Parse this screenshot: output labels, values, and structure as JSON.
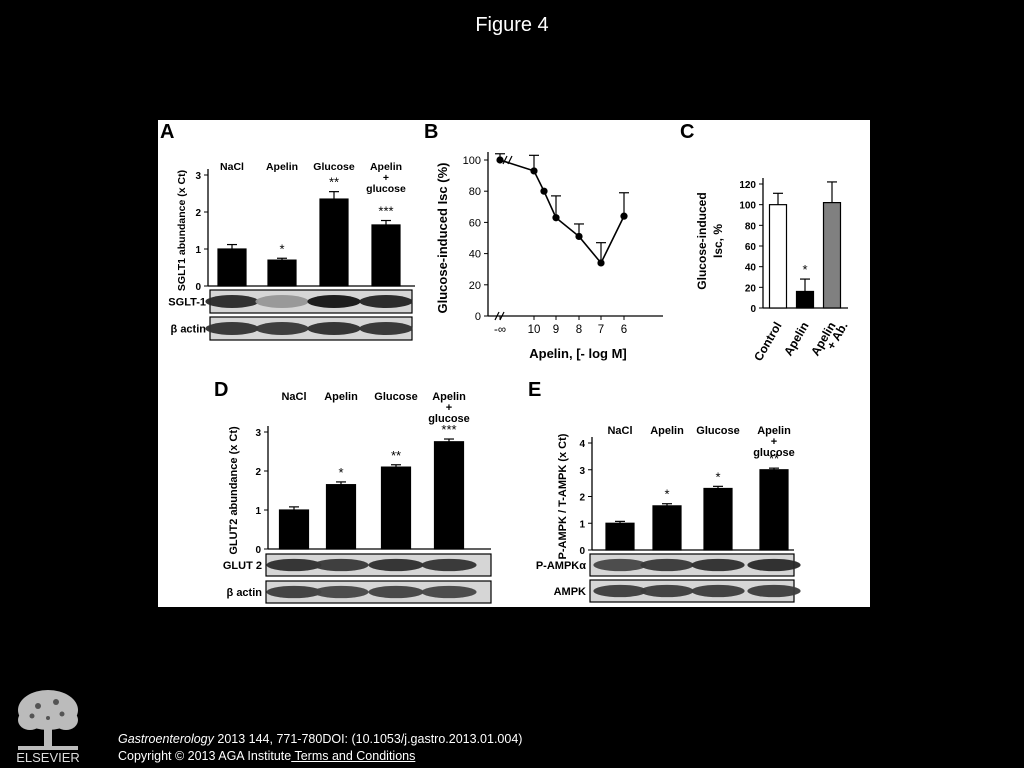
{
  "figure_title": "Figure 4",
  "citation": {
    "journal": "Gastroenterology",
    "ref": " 2013 144, 771-780DOI: (10.1053/j.gastro.2013.01.004)",
    "copyright": "Copyright © 2013 AGA Institute",
    "terms_link": " Terms and Conditions"
  },
  "logo_text": "ELSEVIER",
  "chart_data": [
    {
      "panel": "A",
      "type": "bar",
      "ylabel": "SGLT1 abundance (x Ct)",
      "ylim": [
        0,
        3
      ],
      "yticks": [
        "0",
        "1",
        "2",
        "3"
      ],
      "categories": [
        "NaCl",
        "Apelin",
        "Glucose",
        "Apelin\n+\nglucose"
      ],
      "values": [
        1.0,
        0.7,
        2.35,
        1.65
      ],
      "errors": [
        0.12,
        0.05,
        0.2,
        0.12
      ],
      "significance": [
        "",
        "*",
        "**",
        "***"
      ],
      "blots": [
        "SGLT-1",
        "β actin"
      ]
    },
    {
      "panel": "B",
      "type": "line",
      "ylabel": "Glucose-induced Isc (%)",
      "xlabel": "Apelin, [- log M]",
      "xticks": [
        "-∞",
        "10",
        "9",
        "8",
        "7",
        "6"
      ],
      "yticks": [
        "0",
        "20",
        "40",
        "60",
        "80",
        "100"
      ],
      "ylim": [
        0,
        100
      ],
      "points": [
        {
          "x": "-∞",
          "y": 100,
          "err": 4
        },
        {
          "x": "10",
          "y": 93,
          "err": 10
        },
        {
          "x": "9.5",
          "y": 80,
          "err": 0
        },
        {
          "x": "9",
          "y": 63,
          "err": 14
        },
        {
          "x": "8",
          "y": 51,
          "err": 8
        },
        {
          "x": "7",
          "y": 34,
          "err": 13
        },
        {
          "x": "6",
          "y": 64,
          "err": 15
        }
      ]
    },
    {
      "panel": "C",
      "type": "bar",
      "ylabel": "Glucose-induced\nIsc, %",
      "ylim": [
        0,
        120
      ],
      "yticks": [
        "0",
        "20",
        "40",
        "60",
        "80",
        "100",
        "120"
      ],
      "categories": [
        "Control",
        "Apelin",
        "Apelin\n+ Ab."
      ],
      "values": [
        100,
        16,
        102
      ],
      "errors": [
        11,
        12,
        20
      ],
      "significance": [
        "",
        "*",
        ""
      ],
      "colors": [
        "#ffffff",
        "#000000",
        "#808080"
      ]
    },
    {
      "panel": "D",
      "type": "bar",
      "ylabel": "GLUT2 abundance (x Ct)",
      "ylim": [
        0,
        3
      ],
      "yticks": [
        "0",
        "1",
        "2",
        "3"
      ],
      "categories": [
        "NaCl",
        "Apelin",
        "Glucose",
        "Apelin\n+\nglucose"
      ],
      "values": [
        1.0,
        1.65,
        2.1,
        2.75
      ],
      "errors": [
        0.08,
        0.07,
        0.06,
        0.07
      ],
      "significance": [
        "",
        "*",
        "**",
        "***"
      ],
      "blots": [
        "GLUT 2",
        "β actin"
      ]
    },
    {
      "panel": "E",
      "type": "bar",
      "ylabel": "P-AMPK / T-AMPK (x Ct)",
      "ylim": [
        0,
        4
      ],
      "yticks": [
        "0",
        "1",
        "2",
        "3",
        "4"
      ],
      "categories": [
        "NaCl",
        "Apelin",
        "Glucose",
        "Apelin\n+\nglucose"
      ],
      "values": [
        1.0,
        1.65,
        2.3,
        3.0
      ],
      "errors": [
        0.07,
        0.08,
        0.08,
        0.06
      ],
      "significance": [
        "",
        "*",
        "*",
        "**"
      ],
      "blots": [
        "P-AMPKα",
        "AMPK"
      ]
    }
  ]
}
